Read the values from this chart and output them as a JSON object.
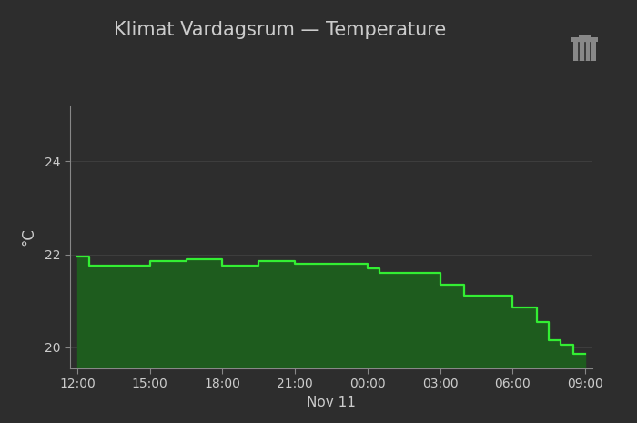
{
  "title": "Klimat Vardagsrum — Temperature",
  "ylabel": "°C",
  "xlabel": "Nov 11",
  "bg_color": "#2d2d2d",
  "text_color": "#cccccc",
  "line_color": "#33ee33",
  "fill_color": "#1e5c1e",
  "grid_color": "#555555",
  "tick_color": "#888888",
  "spine_color": "#888888",
  "yticks": [
    20,
    22,
    24
  ],
  "ylim": [
    19.55,
    25.2
  ],
  "xlim_start": -0.3,
  "xlim_end": 21.3,
  "xtick_labels": [
    "12:00",
    "15:00",
    "18:00",
    "21:00",
    "00:00",
    "03:00",
    "06:00",
    "09:00"
  ],
  "xtick_positions": [
    0,
    3,
    6,
    9,
    12,
    15,
    18,
    21
  ],
  "x": [
    0,
    0.3,
    0.5,
    1.0,
    1.5,
    2.5,
    3.0,
    4.0,
    4.5,
    5.0,
    6.0,
    6.5,
    7.5,
    8.0,
    9.0,
    9.5,
    10.0,
    11.0,
    12.0,
    12.5,
    13.0,
    14.0,
    15.0,
    15.5,
    16.0,
    17.0,
    18.0,
    18.5,
    19.0,
    19.5,
    20.0,
    20.5,
    21.0
  ],
  "y": [
    21.95,
    21.95,
    21.75,
    21.75,
    21.75,
    21.75,
    21.85,
    21.85,
    21.9,
    21.9,
    21.75,
    21.75,
    21.85,
    21.85,
    21.8,
    21.8,
    21.8,
    21.8,
    21.7,
    21.6,
    21.6,
    21.6,
    21.35,
    21.35,
    21.1,
    21.1,
    20.85,
    20.85,
    20.55,
    20.15,
    20.05,
    19.85,
    19.85
  ],
  "title_fontsize": 15,
  "axis_fontsize": 11,
  "tick_fontsize": 10,
  "fill_bottom": 19.55
}
